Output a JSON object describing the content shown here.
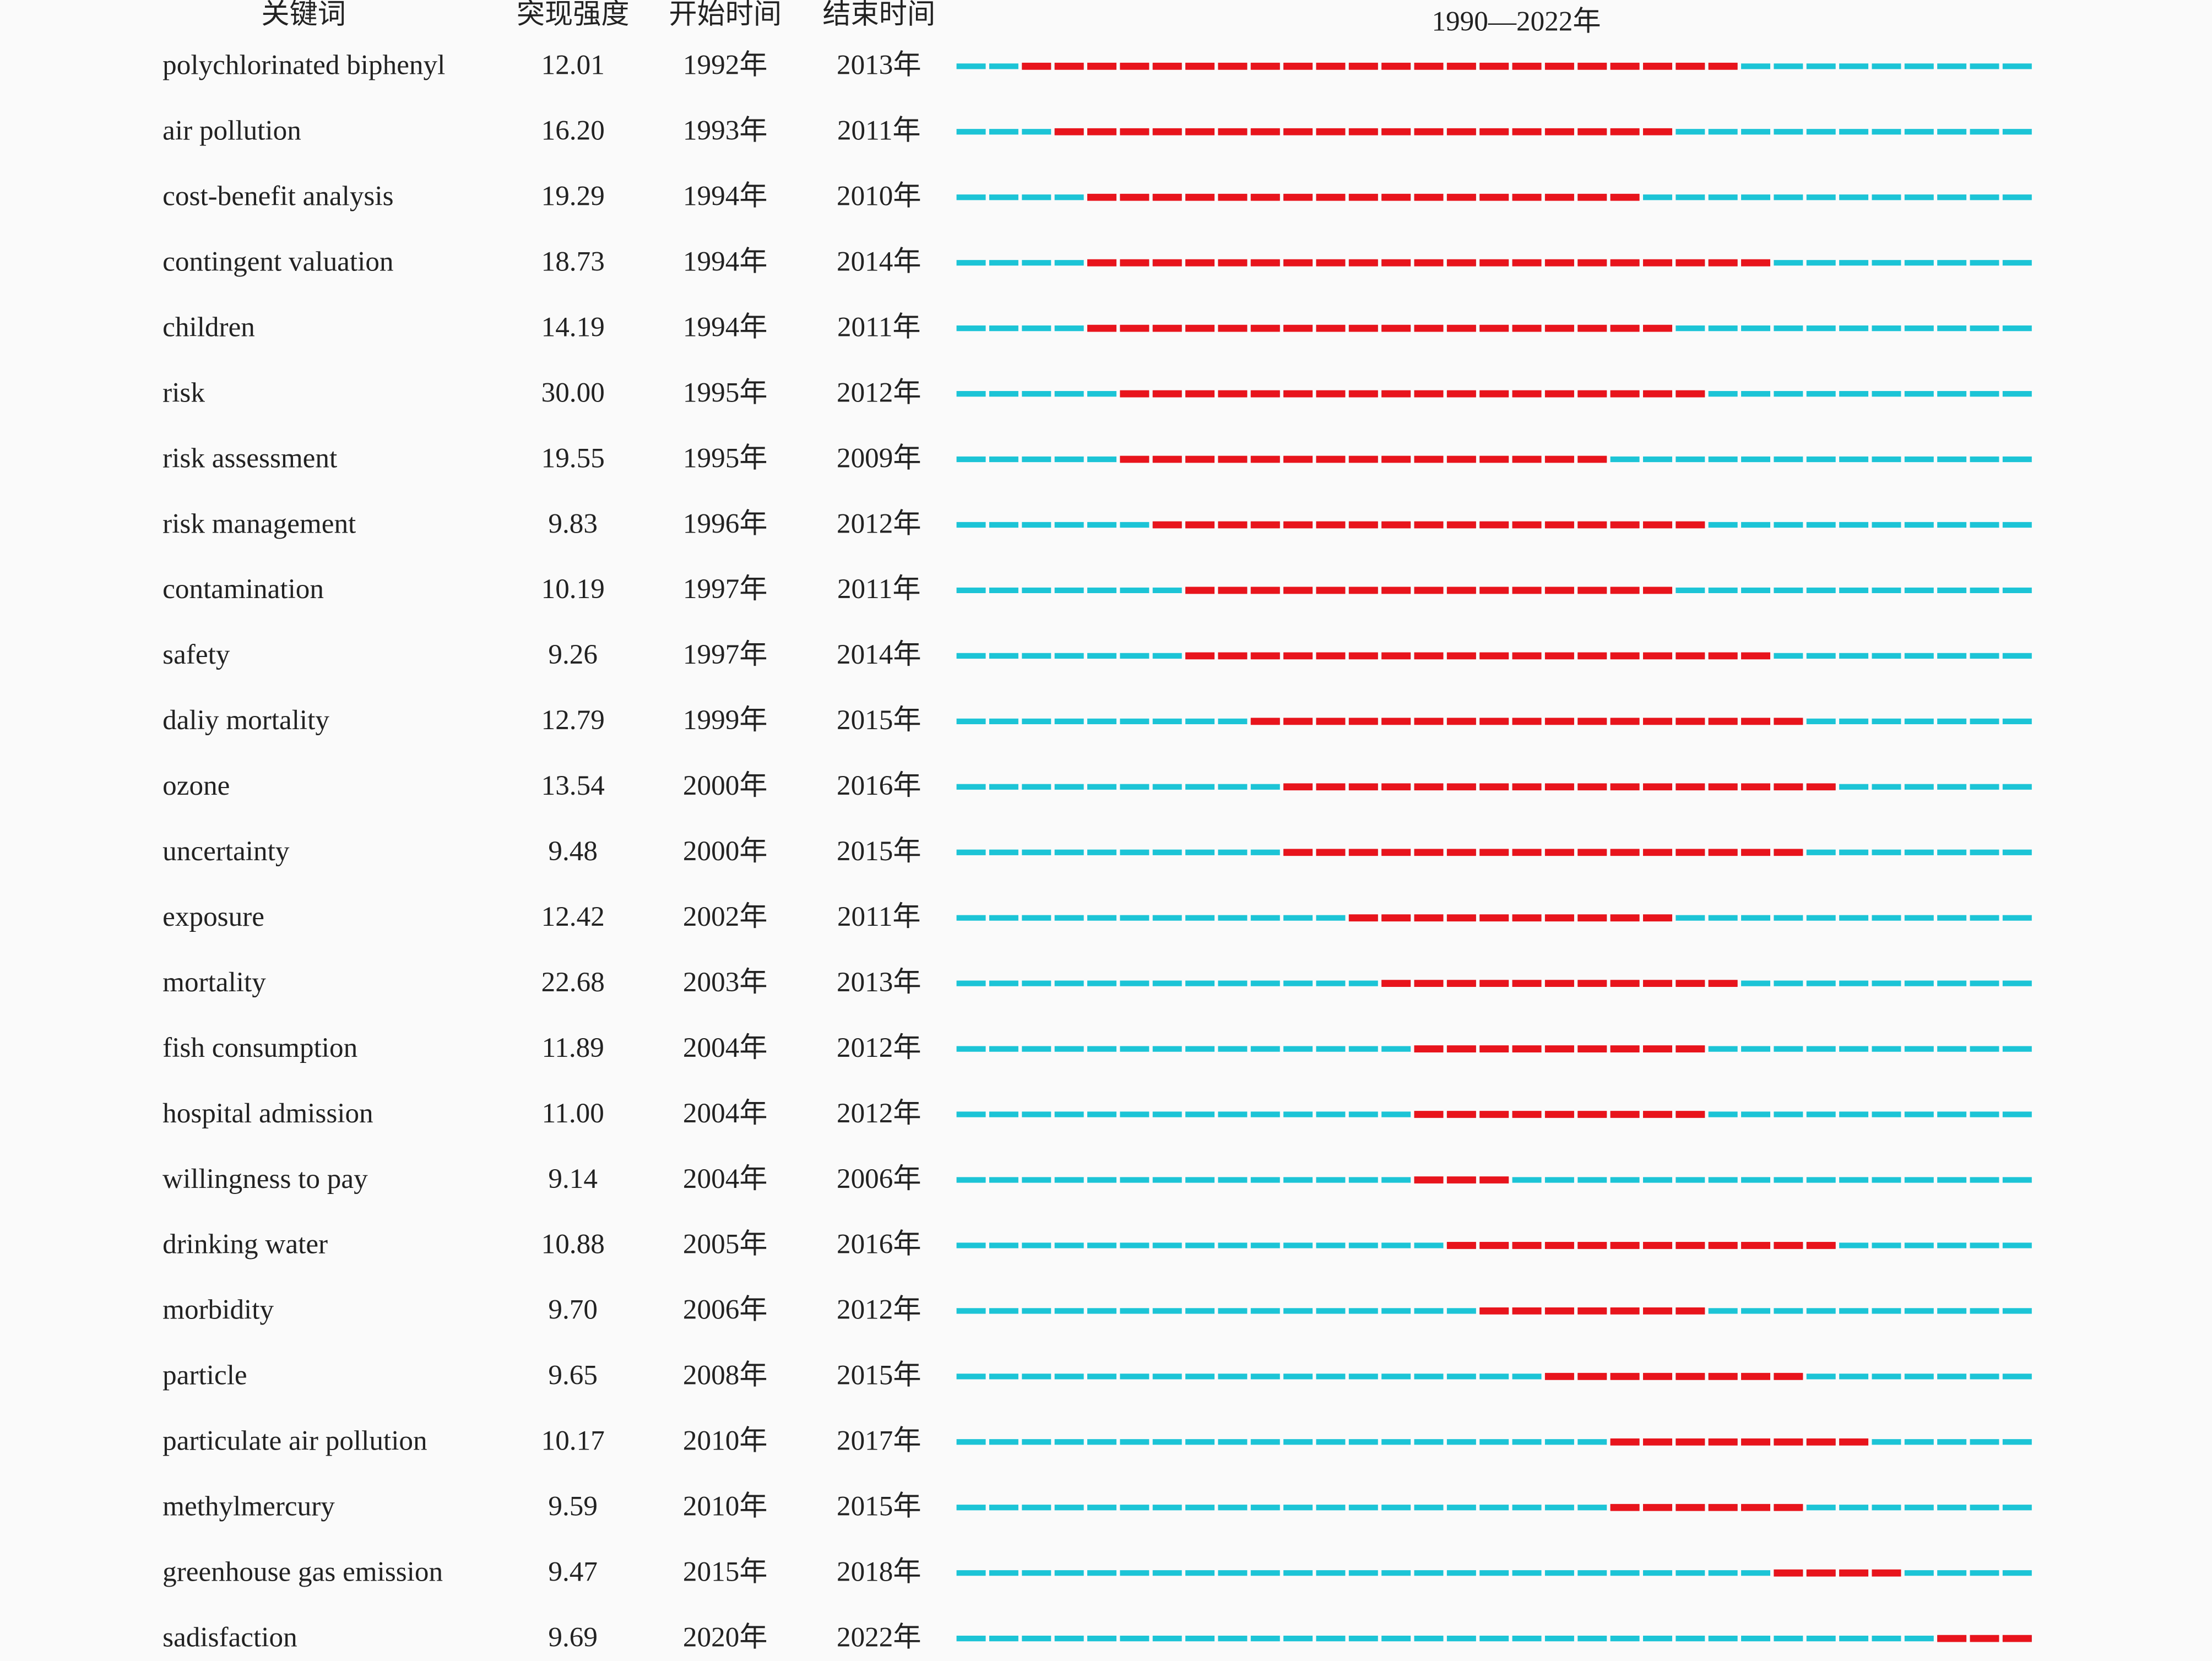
{
  "chart_data": {
    "type": "burst",
    "columns": [
      "关键词",
      "突现强度",
      "开始时间",
      "结束时间"
    ],
    "title": "1990—2022年",
    "xlim": [
      1990,
      2023
    ],
    "burst_color": "#e8141c",
    "base_color": "#1cc4d6",
    "rows": [
      {
        "keyword": "polychlorinated biphenyl",
        "strength": "12.01",
        "begin": {
          "value": 1992,
          "label": "1992年"
        },
        "end": {
          "value": 2013,
          "label": "2013年"
        }
      },
      {
        "keyword": "air pollution",
        "strength": "16.20",
        "begin": {
          "value": 1993,
          "label": "1993年"
        },
        "end": {
          "value": 2011,
          "label": "2011年"
        }
      },
      {
        "keyword": "cost-benefit analysis",
        "strength": "19.29",
        "begin": {
          "value": 1994,
          "label": "1994年"
        },
        "end": {
          "value": 2010,
          "label": "2010年"
        }
      },
      {
        "keyword": "contingent valuation",
        "strength": "18.73",
        "begin": {
          "value": 1994,
          "label": "1994年"
        },
        "end": {
          "value": 2014,
          "label": "2014年"
        }
      },
      {
        "keyword": "children",
        "strength": "14.19",
        "begin": {
          "value": 1994,
          "label": "1994年"
        },
        "end": {
          "value": 2011,
          "label": "2011年"
        }
      },
      {
        "keyword": "risk",
        "strength": "30.00",
        "begin": {
          "value": 1995,
          "label": "1995年"
        },
        "end": {
          "value": 2012,
          "label": "2012年"
        }
      },
      {
        "keyword": "risk assessment",
        "strength": "19.55",
        "begin": {
          "value": 1995,
          "label": "1995年"
        },
        "end": {
          "value": 2009,
          "label": "2009年"
        }
      },
      {
        "keyword": "risk management",
        "strength": "9.83",
        "begin": {
          "value": 1996,
          "label": "1996年"
        },
        "end": {
          "value": 2012,
          "label": "2012年"
        }
      },
      {
        "keyword": "contamination",
        "strength": "10.19",
        "begin": {
          "value": 1997,
          "label": "1997年"
        },
        "end": {
          "value": 2011,
          "label": "2011年"
        }
      },
      {
        "keyword": "safety",
        "strength": "9.26",
        "begin": {
          "value": 1997,
          "label": "1997年"
        },
        "end": {
          "value": 2014,
          "label": "2014年"
        }
      },
      {
        "keyword": "daliy mortality",
        "strength": "12.79",
        "begin": {
          "value": 1999,
          "label": "1999年"
        },
        "end": {
          "value": 2015,
          "label": "2015年"
        }
      },
      {
        "keyword": "ozone",
        "strength": "13.54",
        "begin": {
          "value": 2000,
          "label": "2000年"
        },
        "end": {
          "value": 2016,
          "label": "2016年"
        }
      },
      {
        "keyword": "uncertainty",
        "strength": "9.48",
        "begin": {
          "value": 2000,
          "label": "2000年"
        },
        "end": {
          "value": 2015,
          "label": "2015年"
        }
      },
      {
        "keyword": "exposure",
        "strength": "12.42",
        "begin": {
          "value": 2002,
          "label": "2002年"
        },
        "end": {
          "value": 2011,
          "label": "2011年"
        }
      },
      {
        "keyword": "mortality",
        "strength": "22.68",
        "begin": {
          "value": 2003,
          "label": "2003年"
        },
        "end": {
          "value": 2013,
          "label": "2013年"
        }
      },
      {
        "keyword": "fish consumption",
        "strength": "11.89",
        "begin": {
          "value": 2004,
          "label": "2004年"
        },
        "end": {
          "value": 2012,
          "label": "2012年"
        }
      },
      {
        "keyword": "hospital admission",
        "strength": "11.00",
        "begin": {
          "value": 2004,
          "label": "2004年"
        },
        "end": {
          "value": 2012,
          "label": "2012年"
        }
      },
      {
        "keyword": "willingness to pay",
        "strength": "9.14",
        "begin": {
          "value": 2004,
          "label": "2004年"
        },
        "end": {
          "value": 2006,
          "label": "2006年"
        }
      },
      {
        "keyword": "drinking water",
        "strength": "10.88",
        "begin": {
          "value": 2005,
          "label": "2005年"
        },
        "end": {
          "value": 2016,
          "label": "2016年"
        }
      },
      {
        "keyword": "morbidity",
        "strength": "9.70",
        "begin": {
          "value": 2006,
          "label": "2006年"
        },
        "end": {
          "value": 2012,
          "label": "2012年"
        }
      },
      {
        "keyword": "particle",
        "strength": "9.65",
        "begin": {
          "value": 2008,
          "label": "2008年"
        },
        "end": {
          "value": 2015,
          "label": "2015年"
        }
      },
      {
        "keyword": "particulate air pollution",
        "strength": "10.17",
        "begin": {
          "value": 2010,
          "label": "2010年"
        },
        "end": {
          "value": 2017,
          "label": "2017年"
        }
      },
      {
        "keyword": "methylmercury",
        "strength": "9.59",
        "begin": {
          "value": 2010,
          "label": "2010年"
        },
        "end": {
          "value": 2015,
          "label": "2015年"
        }
      },
      {
        "keyword": "greenhouse gas emission",
        "strength": "9.47",
        "begin": {
          "value": 2015,
          "label": "2015年"
        },
        "end": {
          "value": 2018,
          "label": "2018年"
        }
      },
      {
        "keyword": "sadisfaction",
        "strength": "9.69",
        "begin": {
          "value": 2020,
          "label": "2020年"
        },
        "end": {
          "value": 2022,
          "label": "2022年"
        }
      }
    ]
  }
}
